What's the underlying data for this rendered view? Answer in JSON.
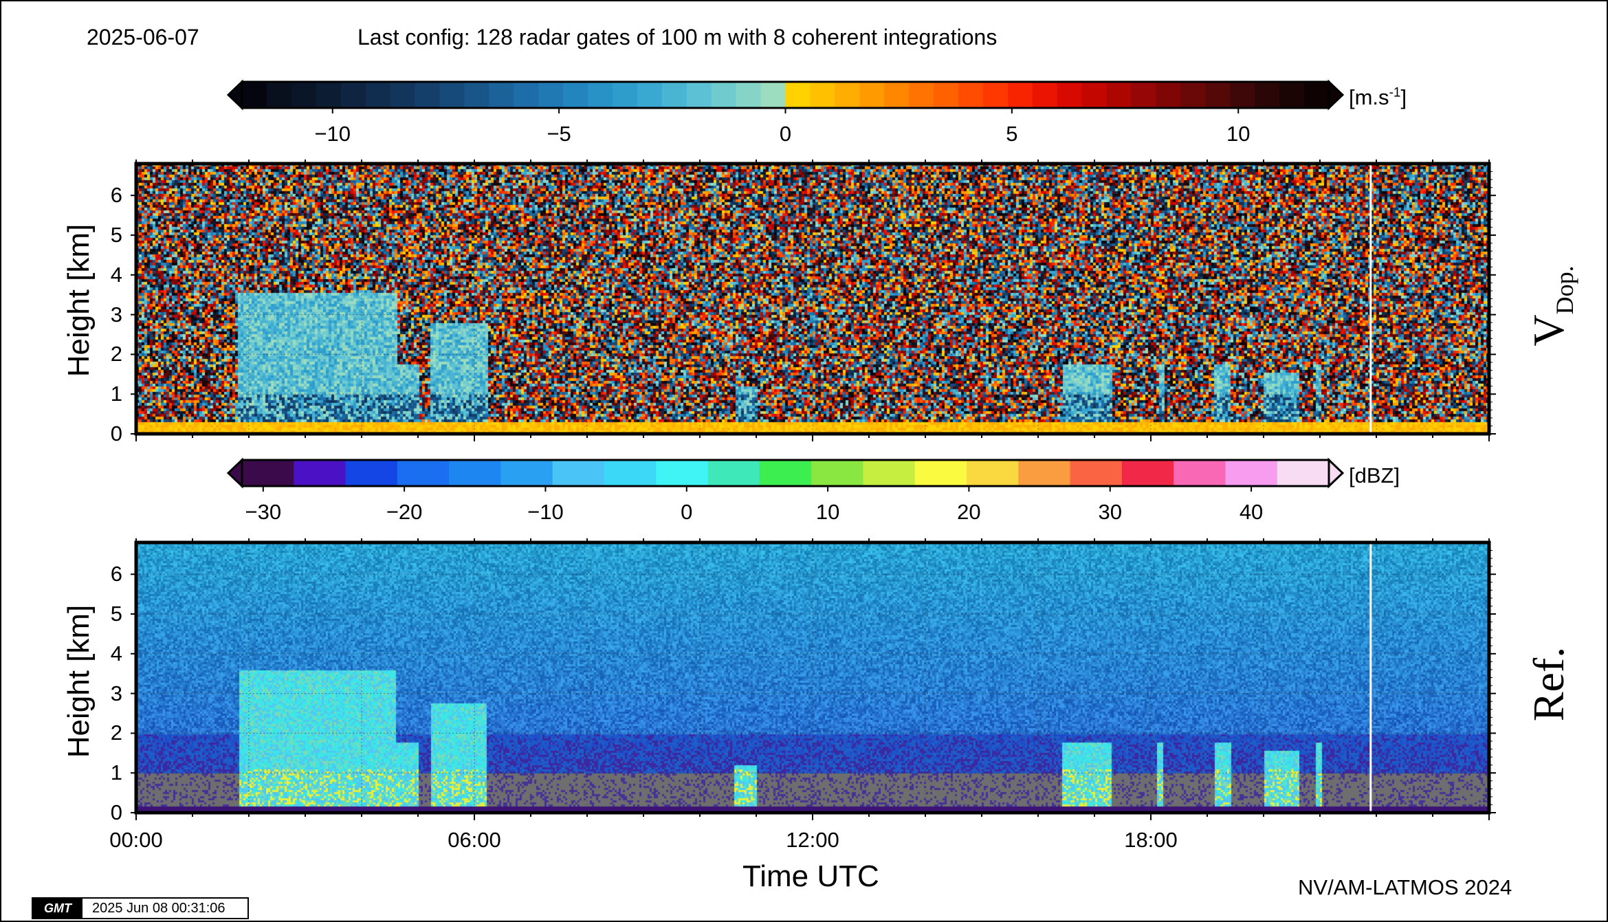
{
  "header": {
    "date": "2025-06-07",
    "config": "Last config: 128 radar gates of 100 m with 8 coherent integrations"
  },
  "footer": {
    "credit": "NV/AM-LATMOS 2024",
    "gmt_logo": "GMT",
    "timestamp": "2025 Jun 08 00:31:06"
  },
  "chart_data": [
    {
      "type": "heatmap",
      "name": "Doppler velocity",
      "side_label": "V",
      "side_label_sub": "Dop.",
      "ylabel": "Height [km]",
      "ylim": [
        0,
        6.8
      ],
      "yticks": [
        "0",
        "1",
        "2",
        "3",
        "4",
        "5",
        "6"
      ],
      "xlim": [
        0,
        24
      ],
      "grid": true,
      "colorbar": {
        "unit_base": "[m.s",
        "unit_exp": "-1",
        "unit_end": "]",
        "range": [
          -12,
          12
        ],
        "ticks": [
          "−10",
          "−5",
          "0",
          "5",
          "10"
        ],
        "tick_values": [
          -10,
          -5,
          0,
          5,
          10
        ],
        "colors": [
          "#05050f",
          "#08101e",
          "#0a1528",
          "#0c1c33",
          "#0e2440",
          "#102c4e",
          "#12355c",
          "#143f6b",
          "#164a7a",
          "#18568a",
          "#1a6299",
          "#1d6ea8",
          "#2079b3",
          "#2385bd",
          "#2891c6",
          "#2f9dcc",
          "#3aa9d1",
          "#4ab5d3",
          "#5cc1d4",
          "#70cbcf",
          "#86d4c8",
          "#9cdcbf",
          "#ffd200",
          "#ffc000",
          "#ffad00",
          "#ff9a00",
          "#ff8700",
          "#ff7300",
          "#ff6000",
          "#ff4c00",
          "#ff3800",
          "#f82400",
          "#ea1400",
          "#d80a00",
          "#c30600",
          "#ad0600",
          "#970606",
          "#800606",
          "#6a0808",
          "#540808",
          "#3e0808",
          "#2a0606",
          "#1a0404",
          "#0e0202"
        ]
      },
      "cloud_features_utc_km": [
        {
          "t0": 1.8,
          "t1": 4.6,
          "top": 3.6
        },
        {
          "t0": 3.4,
          "t1": 5.0,
          "top": 1.8
        },
        {
          "t0": 5.2,
          "t1": 6.2,
          "top": 2.8
        },
        {
          "t0": 10.6,
          "t1": 11.0,
          "top": 1.2
        },
        {
          "t0": 16.4,
          "t1": 17.3,
          "top": 1.8
        },
        {
          "t0": 18.1,
          "t1": 18.2,
          "top": 1.8
        },
        {
          "t0": 19.1,
          "t1": 19.4,
          "top": 1.8
        },
        {
          "t0": 20.0,
          "t1": 20.6,
          "top": 1.6
        },
        {
          "t0": 20.9,
          "t1": 21.0,
          "top": 1.8
        }
      ]
    },
    {
      "type": "heatmap",
      "name": "Reflectivity",
      "side_label": "Ref.",
      "ylabel": "Height [km]",
      "xlabel": "Time UTC",
      "ylim": [
        0,
        6.8
      ],
      "yticks": [
        "0",
        "1",
        "2",
        "3",
        "4",
        "5",
        "6"
      ],
      "xlim": [
        0,
        24
      ],
      "xticks": [
        "00:00",
        "06:00",
        "12:00",
        "18:00"
      ],
      "xtick_values": [
        0,
        6,
        12,
        18
      ],
      "grid": true,
      "colorbar": {
        "unit": "[dBZ]",
        "range": [
          -31.5,
          45.5
        ],
        "ticks": [
          "−30",
          "−20",
          "−10",
          "0",
          "10",
          "20",
          "30",
          "40"
        ],
        "tick_values": [
          -30,
          -20,
          -10,
          0,
          10,
          20,
          30,
          40
        ],
        "colors": [
          "#3a0a4a",
          "#4a12c4",
          "#1446e6",
          "#1a6ef0",
          "#1e86f0",
          "#2aa0f2",
          "#4ac4f6",
          "#3cd8f8",
          "#40f4f6",
          "#3ee8b8",
          "#3cee50",
          "#8ae640",
          "#c6ee40",
          "#fafa40",
          "#fad840",
          "#fa9c40",
          "#fa6442",
          "#f22848",
          "#f868b4",
          "#f89cf0",
          "#f8dcf4"
        ]
      },
      "cloud_features_utc_km": [
        {
          "t0": 1.8,
          "t1": 4.6,
          "top": 3.6
        },
        {
          "t0": 3.4,
          "t1": 5.0,
          "top": 1.8
        },
        {
          "t0": 5.2,
          "t1": 6.2,
          "top": 2.8
        },
        {
          "t0": 10.6,
          "t1": 11.0,
          "top": 1.2
        },
        {
          "t0": 16.4,
          "t1": 17.3,
          "top": 1.8
        },
        {
          "t0": 18.1,
          "t1": 18.2,
          "top": 1.8
        },
        {
          "t0": 19.1,
          "t1": 19.4,
          "top": 1.8
        },
        {
          "t0": 20.0,
          "t1": 20.6,
          "top": 1.6
        },
        {
          "t0": 20.9,
          "t1": 21.0,
          "top": 1.8
        }
      ]
    }
  ]
}
